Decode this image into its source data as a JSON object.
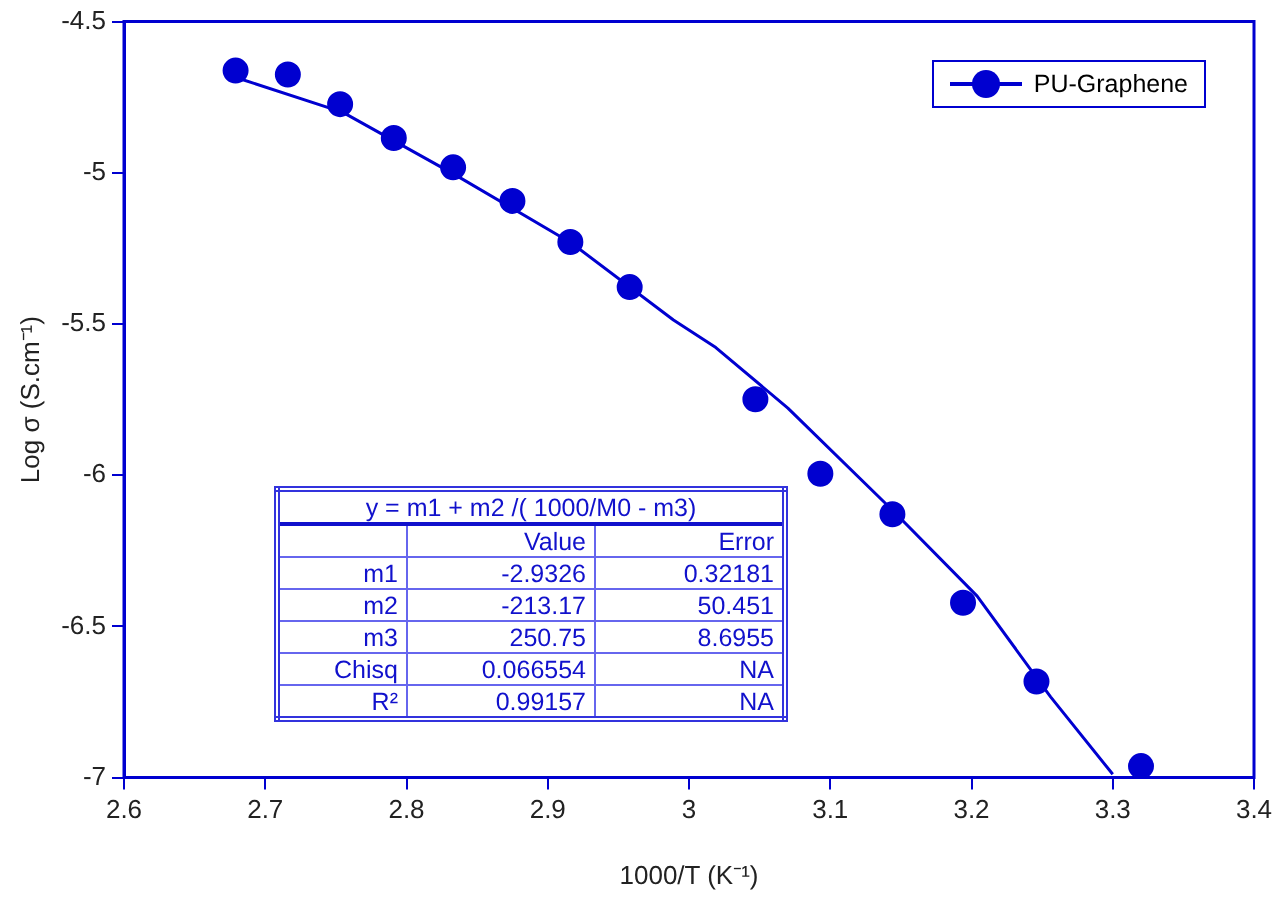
{
  "chart_data": {
    "type": "scatter",
    "xlabel": "1000/T (K⁻¹)",
    "ylabel": "Log σ (S.cm⁻¹)",
    "xlim": [
      2.6,
      3.4
    ],
    "xticks": [
      2.6,
      2.7,
      2.8,
      2.9,
      3,
      3.1,
      3.2,
      3.3,
      3.4
    ],
    "ylim": [
      -7,
      -4.5
    ],
    "yticks": [
      -7,
      -6.5,
      -6,
      -5.5,
      -5,
      -4.5
    ],
    "grid": false,
    "legend": "top right",
    "marker": "circle",
    "series": [
      {
        "name": "PU-Graphene",
        "color": "#0000d0",
        "x": [
          2.679,
          2.716,
          2.753,
          2.791,
          2.833,
          2.875,
          2.916,
          2.958,
          3.047,
          3.093,
          3.144,
          3.194,
          3.246,
          3.32
        ],
        "values": [
          -4.662,
          -4.675,
          -4.773,
          -4.885,
          -4.982,
          -5.093,
          -5.229,
          -5.378,
          -5.749,
          -5.995,
          -6.129,
          -6.422,
          -6.682,
          -6.962
        ]
      },
      {
        "color": "#0000d0",
        "type": "line",
        "marker": "none",
        "x": [
          2.682,
          2.755,
          2.836,
          2.917,
          2.989,
          3.019,
          3.07,
          3.143,
          3.204,
          3.256,
          3.3
        ],
        "values": [
          -4.689,
          -4.8,
          -5.011,
          -5.233,
          -5.487,
          -5.578,
          -5.778,
          -6.111,
          -6.4,
          -6.733,
          -6.989
        ]
      }
    ],
    "annotations": [
      "y = m1 + m2 /( 1000/M0 - m3)",
      "Value",
      "Error",
      "m1",
      "-2.9326",
      "0.32181",
      "m2",
      "-213.17",
      "50.451",
      "m3",
      "250.75",
      "8.6955",
      "Chisq",
      "0.066554",
      "NA",
      "R²",
      "0.99157",
      "NA"
    ]
  }
}
